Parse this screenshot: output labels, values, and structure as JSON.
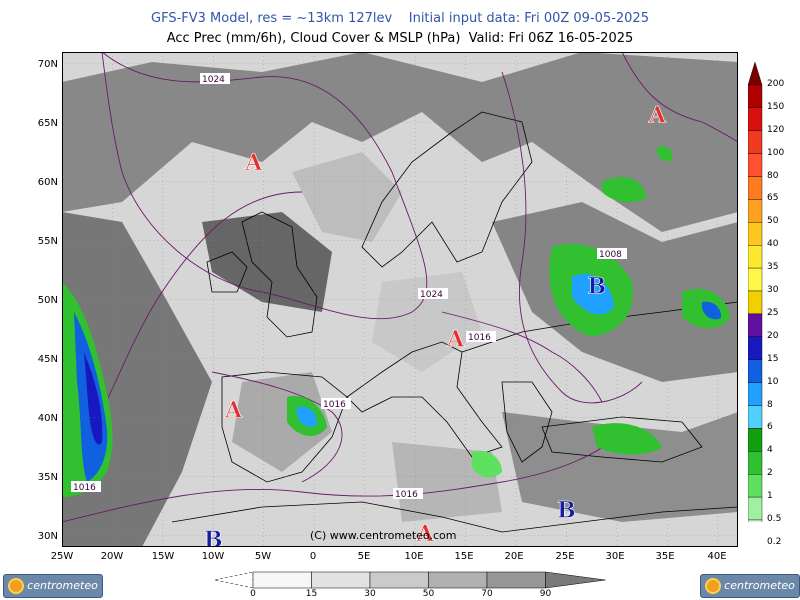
{
  "header": {
    "line1": "GFS-FV3 Model, res = ~13km 127lev    Initial input data: Fri 00Z 09-05-2025",
    "line2": "Acc Prec (mm/6h), Cloud Cover & MSLP (hPa)  Valid: Fri 06Z 16-05-2025"
  },
  "map": {
    "lat_labels": [
      "70N",
      "65N",
      "60N",
      "55N",
      "50N",
      "45N",
      "40N",
      "35N",
      "30N"
    ],
    "lon_labels": [
      "25W",
      "20W",
      "15W",
      "10W",
      "5W",
      "0",
      "5E",
      "10E",
      "15E",
      "20E",
      "25E",
      "30E",
      "35E",
      "40E"
    ],
    "copyright": "(C)  www.centrometeo.com",
    "pressure_labels": [
      "1024",
      "1024",
      "1016",
      "1016",
      "1008",
      "1016",
      "1016"
    ],
    "pressure_centers": [
      {
        "letter": "A",
        "lon": -6,
        "lat": 61,
        "type": "high"
      },
      {
        "letter": "A",
        "lon": 34,
        "lat": 65,
        "type": "high"
      },
      {
        "letter": "A",
        "lon": 14,
        "lat": 46,
        "type": "high"
      },
      {
        "letter": "A",
        "lon": -8,
        "lat": 40,
        "type": "high"
      },
      {
        "letter": "A",
        "lon": 11,
        "lat": 29.5,
        "type": "high"
      },
      {
        "letter": "B",
        "lon": 28,
        "lat": 50.5,
        "type": "low"
      },
      {
        "letter": "B",
        "lon": 25,
        "lat": 31.5,
        "type": "low"
      },
      {
        "letter": "B",
        "lon": -10,
        "lat": 29,
        "type": "low"
      }
    ],
    "colors": {
      "high": "#e23030",
      "low": "#151e9e",
      "isobar": "#6a1a6a",
      "land": "#9a9a9a"
    }
  },
  "precip_scale": {
    "labels": [
      "200",
      "150",
      "120",
      "100",
      "80",
      "65",
      "50",
      "40",
      "35",
      "30",
      "25",
      "20",
      "15",
      "10",
      "8",
      "6",
      "4",
      "2",
      "1",
      "0.5",
      "0.2"
    ],
    "colors": [
      "#7a0000",
      "#b00000",
      "#d81010",
      "#f03a20",
      "#ff5030",
      "#ff7a20",
      "#ffa020",
      "#ffc820",
      "#ffe830",
      "#fff84a",
      "#f0d000",
      "#6010a0",
      "#1818c0",
      "#1060e0",
      "#20a0ff",
      "#50d0ff",
      "#10a010",
      "#30c030",
      "#60e060",
      "#a0f0a0",
      "#d8fcd8"
    ]
  },
  "cloud_scale": {
    "labels": [
      "0",
      "15",
      "30",
      "50",
      "70",
      "90"
    ],
    "colors": [
      "#f6f6f6",
      "#e2e2e2",
      "#cacaca",
      "#b0b0b0",
      "#969696",
      "#7a7a7a"
    ]
  },
  "logos": {
    "left": "centrometeo",
    "right": "centrometeo"
  }
}
